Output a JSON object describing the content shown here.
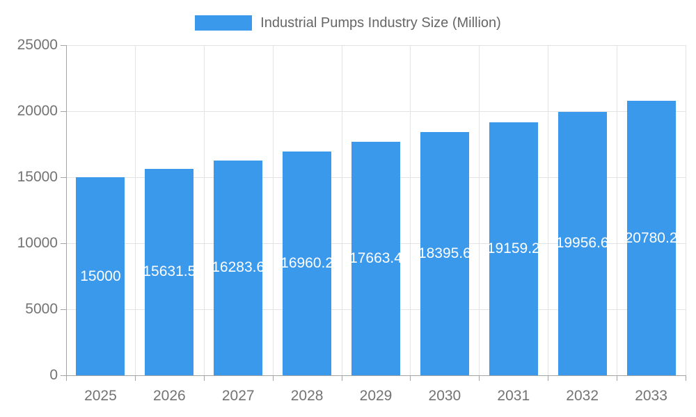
{
  "legend": {
    "label": "Industrial Pumps Industry Size (Million)"
  },
  "chart_data": {
    "type": "bar",
    "title": "Industrial Pumps Industry Size (Million)",
    "categories": [
      "2025",
      "2026",
      "2027",
      "2028",
      "2029",
      "2030",
      "2031",
      "2032",
      "2033"
    ],
    "values": [
      15000,
      15631.5,
      16283.6,
      16960.2,
      17663.4,
      18395.6,
      19159.2,
      19956.6,
      20780.2
    ],
    "bar_labels": [
      "15000",
      "15631.5",
      "16283.6",
      "16960.2",
      "17663.4",
      "18395.6",
      "19159.2",
      "19956.6",
      "20780.2"
    ],
    "xlabel": "",
    "ylabel": "",
    "ylim": [
      0,
      25000
    ],
    "yticks": [
      0,
      5000,
      10000,
      15000,
      20000,
      25000
    ],
    "ytick_labels": [
      "0",
      "5000",
      "10000",
      "15000",
      "20000",
      "25000"
    ],
    "grid": true,
    "legend_position": "top",
    "colors": {
      "bar": "#3b99ec",
      "axis": "#a3a3a3",
      "grid": "#e3e3e3",
      "tick_label": "#737373",
      "legend_text": "#666666",
      "bar_label": "#ffffff",
      "background": "#ffffff"
    }
  }
}
